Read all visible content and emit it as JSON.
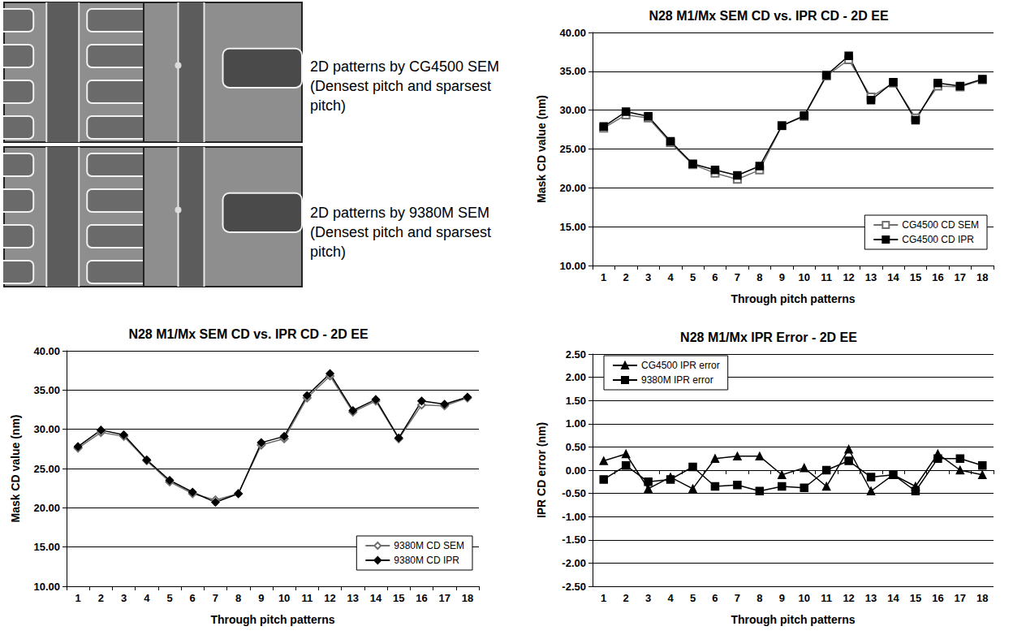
{
  "image_captions": [
    "2D patterns by CG4500 SEM (Densest pitch and sparsest pitch)",
    "2D patterns by 9380M SEM (Densest pitch and sparsest pitch)"
  ],
  "chart_data": [
    {
      "type": "line",
      "title": "N28 M1/Mx SEM CD vs. IPR CD - 2D EE",
      "x_label": "Through pitch patterns",
      "y_label": "Mask CD value (nm)",
      "categories": [
        1,
        2,
        3,
        4,
        5,
        6,
        7,
        8,
        9,
        10,
        11,
        12,
        13,
        14,
        15,
        16,
        17,
        18
      ],
      "series": [
        {
          "name": "CG4500 CD SEM",
          "color": "#707070",
          "marker": "open_square",
          "values": [
            27.7,
            29.4,
            29.0,
            25.8,
            23.0,
            21.9,
            21.1,
            22.3,
            28.0,
            29.2,
            34.4,
            36.5,
            31.7,
            33.5,
            29.0,
            33.1,
            33.0,
            33.9
          ]
        },
        {
          "name": "CG4500 CD IPR",
          "color": "#000000",
          "marker": "square",
          "values": [
            27.9,
            29.8,
            29.2,
            26.0,
            23.1,
            22.3,
            21.6,
            22.8,
            28.0,
            29.3,
            34.5,
            37.0,
            31.3,
            33.6,
            28.7,
            33.5,
            33.1,
            34.0
          ]
        }
      ],
      "ylim": [
        10,
        40
      ],
      "yticks": [
        {
          "value": 10,
          "label": "10.00"
        },
        {
          "value": 15,
          "label": "15.00"
        },
        {
          "value": 20,
          "label": "20.00"
        },
        {
          "value": 25,
          "label": "25.00"
        },
        {
          "value": 30,
          "label": "30.00"
        },
        {
          "value": 35,
          "label": "35.00"
        },
        {
          "value": 40,
          "label": "40.00"
        }
      ],
      "grid": true,
      "legend": "lower right"
    },
    {
      "type": "line",
      "title": "N28 M1/Mx SEM CD vs. IPR CD - 2D EE",
      "x_label": "Through pitch patterns",
      "y_label": "Mask CD value (nm)",
      "categories": [
        1,
        2,
        3,
        4,
        5,
        6,
        7,
        8,
        9,
        10,
        11,
        12,
        13,
        14,
        15,
        16,
        17,
        18
      ],
      "series": [
        {
          "name": "9380M CD SEM",
          "color": "#707070",
          "marker": "open_diamond",
          "values": [
            27.6,
            29.6,
            29.1,
            26.0,
            23.3,
            21.8,
            21.0,
            21.8,
            28.0,
            28.8,
            34.0,
            36.8,
            32.2,
            33.6,
            28.8,
            33.1,
            33.0,
            34.0
          ]
        },
        {
          "name": "9380M CD IPR",
          "color": "#000000",
          "marker": "diamond",
          "values": [
            27.8,
            29.9,
            29.3,
            26.1,
            23.5,
            22.0,
            20.7,
            21.8,
            28.3,
            29.1,
            34.3,
            37.1,
            32.4,
            33.8,
            28.9,
            33.6,
            33.2,
            34.1
          ]
        }
      ],
      "ylim": [
        10,
        40
      ],
      "yticks": [
        {
          "value": 10,
          "label": "10.00"
        },
        {
          "value": 15,
          "label": "15.00"
        },
        {
          "value": 20,
          "label": "20.00"
        },
        {
          "value": 25,
          "label": "25.00"
        },
        {
          "value": 30,
          "label": "30.00"
        },
        {
          "value": 35,
          "label": "35.00"
        },
        {
          "value": 40,
          "label": "40.00"
        }
      ],
      "grid": true,
      "legend": "lower right"
    },
    {
      "type": "line",
      "title": "N28 M1/Mx IPR Error - 2D EE",
      "x_label": "Through pitch patterns",
      "y_label": "IPR CD error (nm)",
      "categories": [
        1,
        2,
        3,
        4,
        5,
        6,
        7,
        8,
        9,
        10,
        11,
        12,
        13,
        14,
        15,
        16,
        17,
        18
      ],
      "series": [
        {
          "name": "CG4500 IPR error",
          "color": "#000000",
          "marker": "triangle",
          "values": [
            0.2,
            0.35,
            -0.4,
            -0.15,
            -0.4,
            0.25,
            0.3,
            0.3,
            -0.1,
            0.05,
            -0.35,
            0.45,
            -0.45,
            -0.1,
            -0.35,
            0.35,
            0.0,
            -0.1
          ]
        },
        {
          "name": "9380M IPR error",
          "color": "#000000",
          "marker": "square",
          "values": [
            -0.2,
            0.1,
            -0.25,
            -0.2,
            0.07,
            -0.35,
            -0.32,
            -0.45,
            -0.35,
            -0.38,
            0.0,
            0.2,
            -0.15,
            -0.1,
            -0.45,
            0.25,
            0.25,
            0.1
          ]
        }
      ],
      "ylim": [
        -2.5,
        2.5
      ],
      "yticks": [
        {
          "value": -2.5,
          "label": "-2.50"
        },
        {
          "value": -2,
          "label": "-2.00"
        },
        {
          "value": -1.5,
          "label": "-1.50"
        },
        {
          "value": -1,
          "label": "-1.00"
        },
        {
          "value": -0.5,
          "label": "-0.50"
        },
        {
          "value": 0,
          "label": "0.00"
        },
        {
          "value": 0.5,
          "label": "0.50"
        },
        {
          "value": 1,
          "label": "1.00"
        },
        {
          "value": 1.5,
          "label": "1.50"
        },
        {
          "value": 2,
          "label": "2.00"
        },
        {
          "value": 2.5,
          "label": "2.50"
        }
      ],
      "grid": true,
      "legend": "upper left"
    }
  ]
}
